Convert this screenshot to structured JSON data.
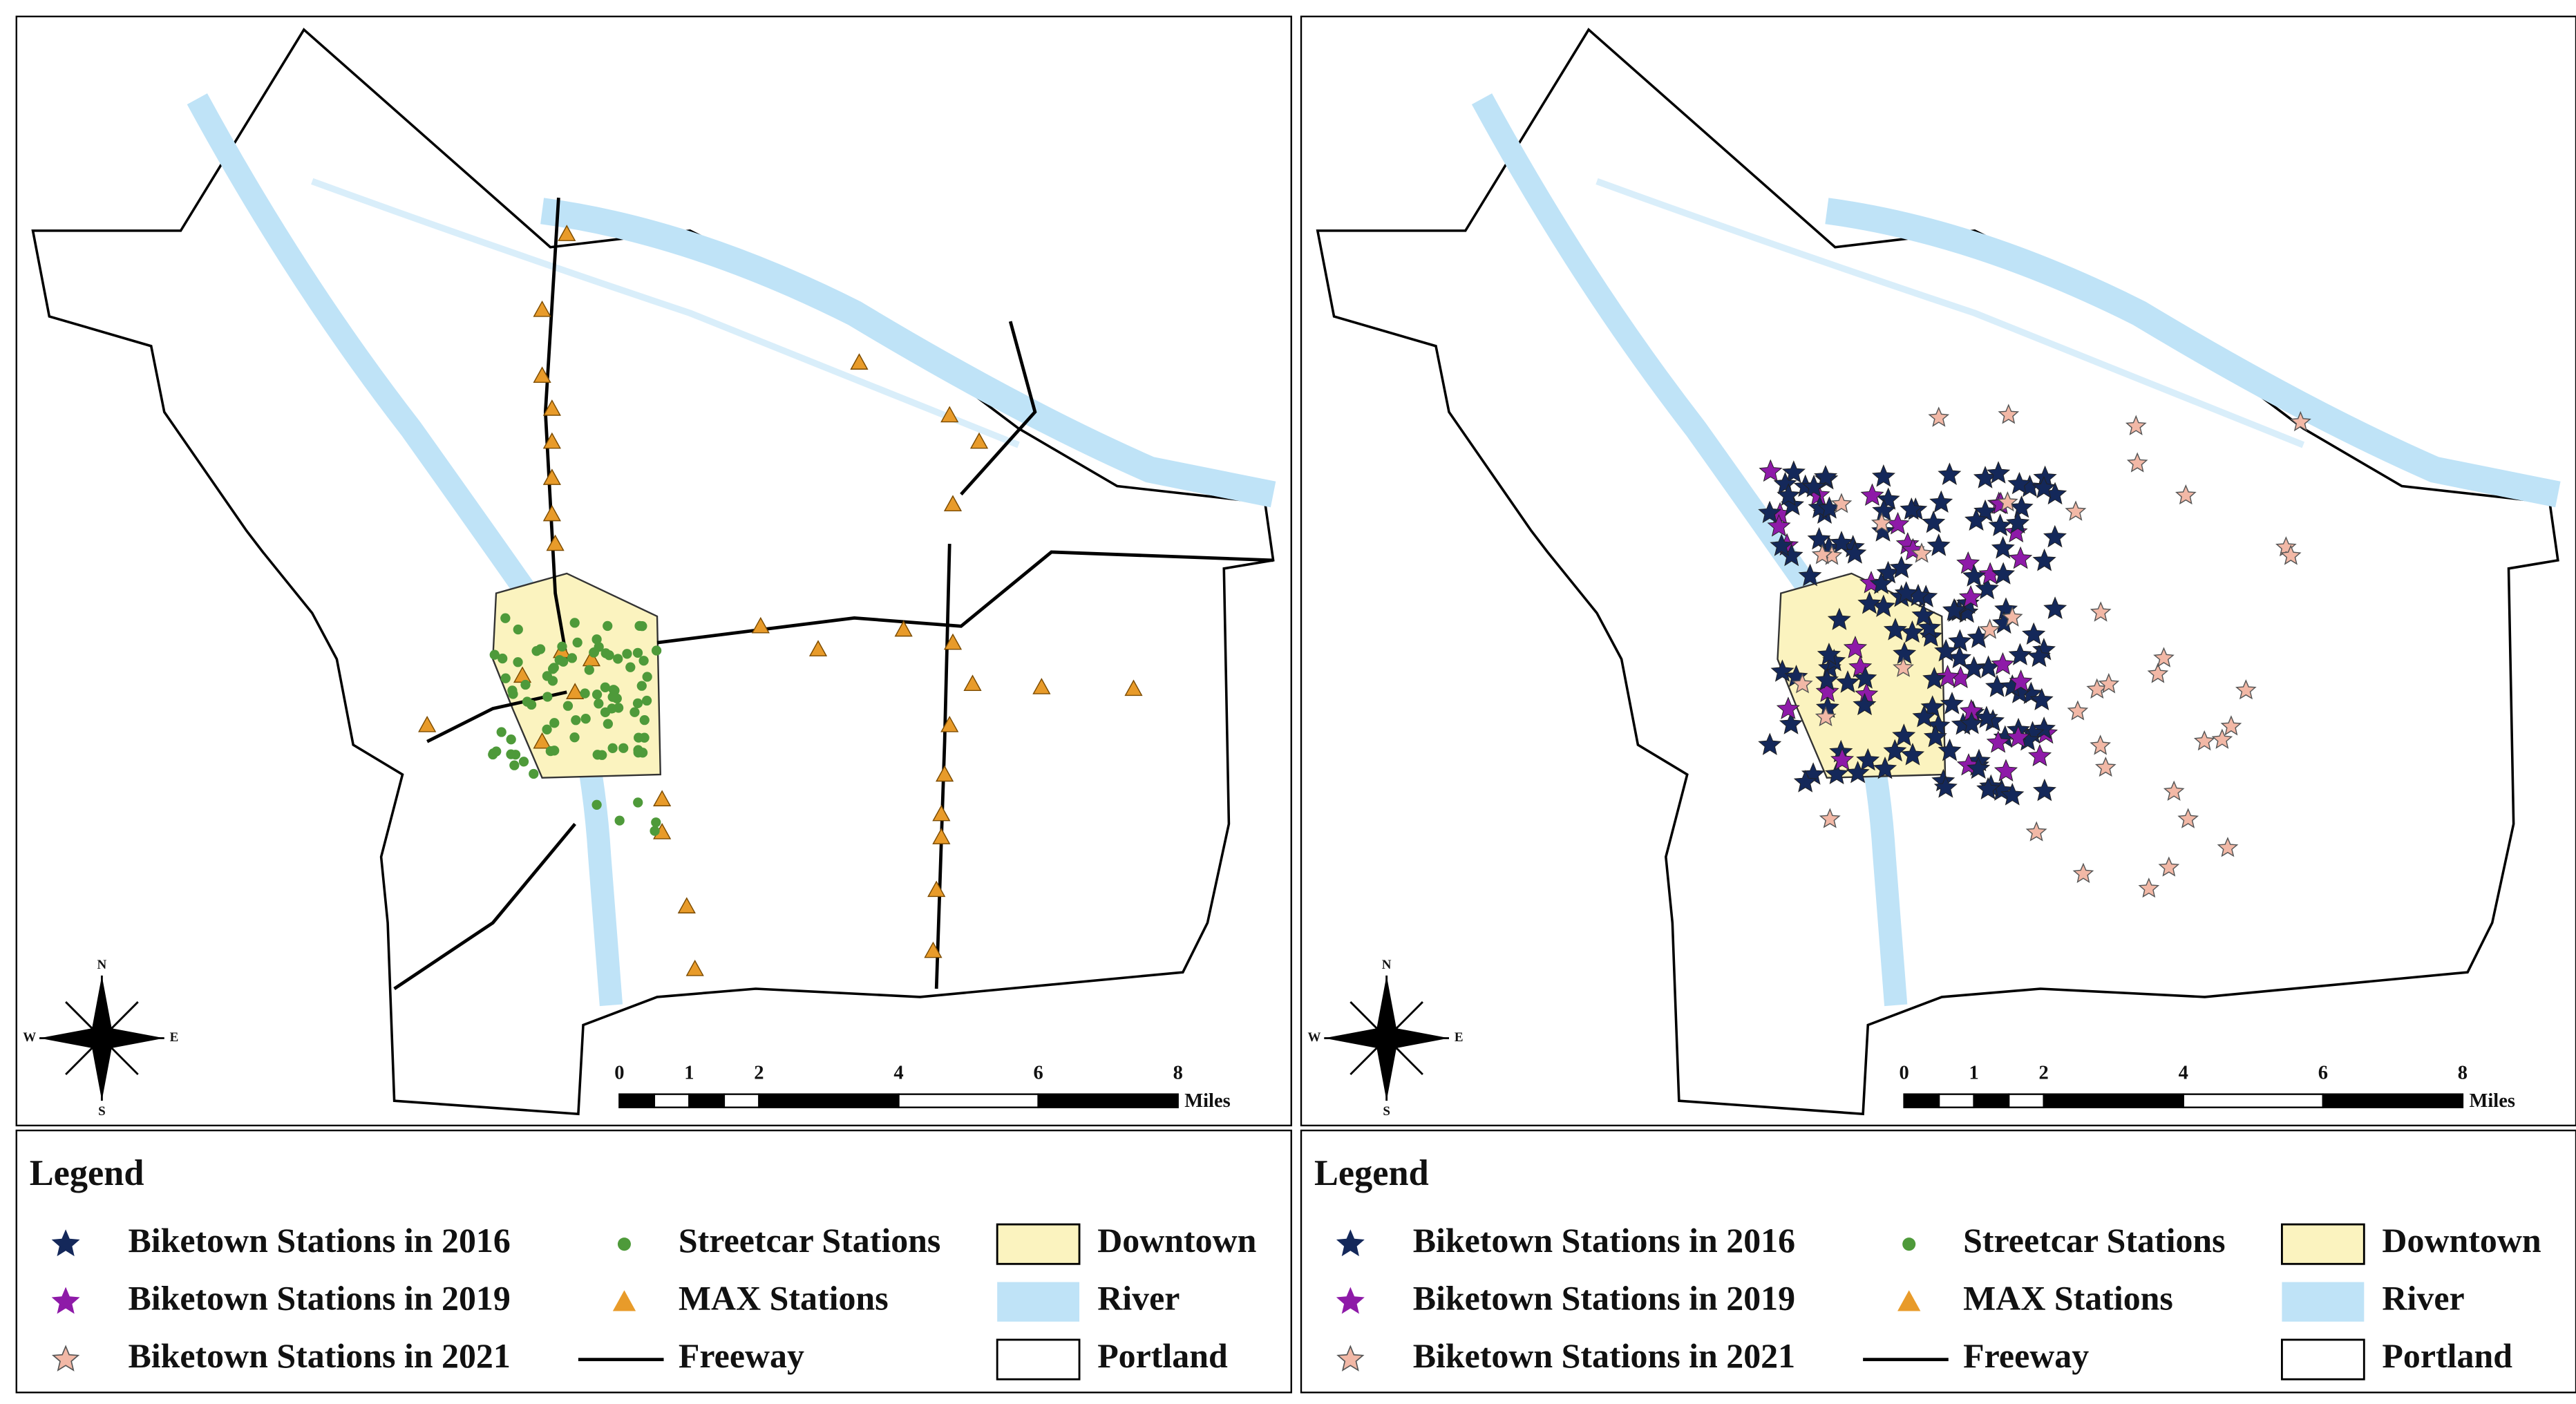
{
  "panels": [
    {
      "scale_bar": {
        "ticks": [
          0,
          1,
          2,
          4,
          6,
          8
        ],
        "unit": "Miles"
      },
      "compass": {
        "n": "N",
        "s": "S",
        "e": "E",
        "w": "W"
      },
      "legend": {
        "title": "Legend",
        "items": [
          "Biketown Stations in 2016",
          "Biketown Stations in 2019",
          "Biketown Stations in 2021",
          "Streetcar Stations",
          "MAX Stations",
          "Freeway",
          "Downtown",
          "River",
          "Portland"
        ]
      }
    },
    {
      "scale_bar": {
        "ticks": [
          0,
          1,
          2,
          4,
          6,
          8
        ],
        "unit": "Miles"
      },
      "compass": {
        "n": "N",
        "s": "S",
        "e": "E",
        "w": "W"
      },
      "legend": {
        "title": "Legend",
        "items": [
          "Biketown Stations in 2016",
          "Biketown Stations in 2019",
          "Biketown Stations in 2021",
          "Streetcar Stations",
          "MAX Stations",
          "Freeway",
          "Downtown",
          "River",
          "Portland"
        ]
      }
    }
  ]
}
